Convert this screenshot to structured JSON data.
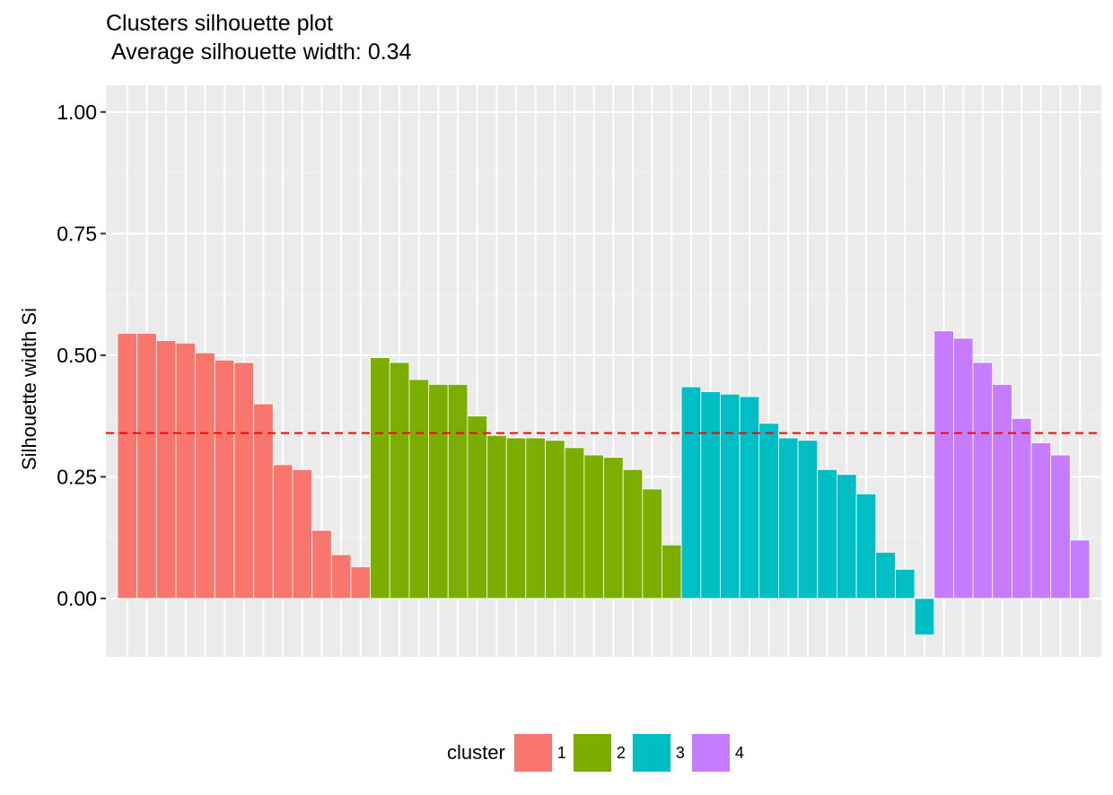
{
  "chart_data": {
    "type": "bar",
    "title": "Clusters silhouette plot",
    "subtitle": "Average silhouette width: 0.34",
    "xlabel": "",
    "ylabel": "Silhouette width Si",
    "ylim": [
      -0.12,
      1.055
    ],
    "yticks": [
      "0.00",
      "0.25",
      "0.50",
      "0.75",
      "1.00"
    ],
    "ytick_values": [
      0,
      0.25,
      0.5,
      0.75,
      1.0
    ],
    "average_line": 0.34,
    "grid": true,
    "legend_title": "cluster",
    "legend_position": "bottom",
    "series": [
      {
        "name": "1",
        "color": "#F8766D",
        "values": [
          0.545,
          0.545,
          0.53,
          0.525,
          0.505,
          0.49,
          0.485,
          0.4,
          0.275,
          0.265,
          0.14,
          0.09,
          0.065
        ]
      },
      {
        "name": "2",
        "color": "#7CAE00",
        "values": [
          0.495,
          0.485,
          0.45,
          0.44,
          0.44,
          0.375,
          0.335,
          0.33,
          0.33,
          0.325,
          0.31,
          0.295,
          0.29,
          0.265,
          0.225,
          0.11
        ]
      },
      {
        "name": "3",
        "color": "#00BFC4",
        "values": [
          0.435,
          0.425,
          0.42,
          0.415,
          0.36,
          0.33,
          0.325,
          0.265,
          0.255,
          0.215,
          0.095,
          0.06,
          -0.075
        ]
      },
      {
        "name": "4",
        "color": "#C77CFF",
        "values": [
          0.55,
          0.535,
          0.485,
          0.44,
          0.37,
          0.32,
          0.295,
          0.12
        ]
      }
    ]
  }
}
